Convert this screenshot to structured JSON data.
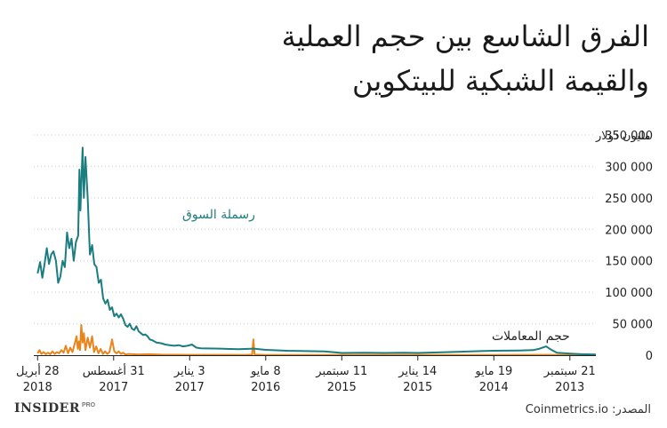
{
  "title_lines": [
    "الفرق الشاسع بين حجم العملية",
    "والقيمة الشبكية للبيتكوين"
  ],
  "footer": {
    "brand": "INSIDER",
    "brand_super": "PRO",
    "source_label": "المصدر:",
    "source_name": "Coinmetrics.io"
  },
  "colors": {
    "market_cap": "#1b7d80",
    "volume": "#e8851d",
    "axis": "#222222",
    "grid": "#cfcfcf",
    "text": "#222222"
  },
  "chart_data": {
    "type": "line",
    "title": "الفرق الشاسع بين حجم العملية والقيمة الشبكية للبيتكوين",
    "xlabel": "",
    "ylabel": "مليون دولار",
    "ylim": [
      0,
      350000
    ],
    "yticks": [
      0,
      50000,
      100000,
      150000,
      200000,
      250000,
      300000,
      350000
    ],
    "ytick_labels": [
      "0",
      "50 000",
      "100 000",
      "150 000",
      "200 000",
      "250 000",
      "300 000",
      "350 000"
    ],
    "y_unit_label": "مليون دولار",
    "x_reversed": true,
    "xrange": [
      "2018-05-10",
      "2013-07-01"
    ],
    "xticks": [
      {
        "date": "2018-04-28",
        "day": "28 أبريل",
        "year": "2018"
      },
      {
        "date": "2017-08-31",
        "day": "31 أغسطس",
        "year": "2017"
      },
      {
        "date": "2017-01-03",
        "day": "3 يناير",
        "year": "2017"
      },
      {
        "date": "2016-05-08",
        "day": "8 مايو",
        "year": "2016"
      },
      {
        "date": "2015-09-11",
        "day": "11 سبتمبر",
        "year": "2015"
      },
      {
        "date": "2015-01-14",
        "day": "14 يناير",
        "year": "2015"
      },
      {
        "date": "2014-05-19",
        "day": "19 مايو",
        "year": "2014"
      },
      {
        "date": "2013-09-21",
        "day": "21 سبتمبر",
        "year": "2013"
      }
    ],
    "grid": false,
    "annotations": [
      {
        "text": "رسملة السوق",
        "series": "رسملة السوق",
        "near": "2017-07-15"
      },
      {
        "text": "حجم المعاملات",
        "series": "حجم المعاملات",
        "near": "2014-06-01"
      }
    ],
    "series": [
      {
        "name": "رسملة السوق",
        "color": "#1b7d80",
        "points": [
          [
            "2018-04-28",
            130000
          ],
          [
            "2018-04-20",
            148000
          ],
          [
            "2018-04-13",
            123000
          ],
          [
            "2018-04-06",
            145000
          ],
          [
            "2018-03-30",
            170000
          ],
          [
            "2018-03-23",
            145000
          ],
          [
            "2018-03-16",
            160000
          ],
          [
            "2018-03-09",
            165000
          ],
          [
            "2018-03-01",
            150000
          ],
          [
            "2018-02-22",
            115000
          ],
          [
            "2018-02-15",
            125000
          ],
          [
            "2018-02-08",
            150000
          ],
          [
            "2018-02-01",
            140000
          ],
          [
            "2018-01-25",
            195000
          ],
          [
            "2018-01-18",
            170000
          ],
          [
            "2018-01-11",
            185000
          ],
          [
            "2018-01-04",
            150000
          ],
          [
            "2017-12-28",
            180000
          ],
          [
            "2017-12-21",
            190000
          ],
          [
            "2017-12-17",
            295000
          ],
          [
            "2017-12-14",
            230000
          ],
          [
            "2017-12-07",
            330000
          ],
          [
            "2017-12-03",
            250000
          ],
          [
            "2017-11-28",
            315000
          ],
          [
            "2017-11-21",
            250000
          ],
          [
            "2017-11-14",
            160000
          ],
          [
            "2017-11-07",
            175000
          ],
          [
            "2017-10-31",
            145000
          ],
          [
            "2017-10-24",
            140000
          ],
          [
            "2017-10-17",
            115000
          ],
          [
            "2017-10-10",
            120000
          ],
          [
            "2017-10-03",
            90000
          ],
          [
            "2017-09-26",
            82000
          ],
          [
            "2017-09-19",
            88000
          ],
          [
            "2017-09-12",
            72000
          ],
          [
            "2017-09-05",
            76000
          ],
          [
            "2017-08-29",
            62000
          ],
          [
            "2017-08-22",
            66000
          ],
          [
            "2017-08-15",
            60000
          ],
          [
            "2017-08-08",
            65000
          ],
          [
            "2017-08-01",
            58000
          ],
          [
            "2017-07-25",
            48000
          ],
          [
            "2017-07-18",
            45000
          ],
          [
            "2017-07-11",
            50000
          ],
          [
            "2017-07-04",
            42000
          ],
          [
            "2017-06-27",
            40000
          ],
          [
            "2017-06-20",
            46000
          ],
          [
            "2017-06-13",
            38000
          ],
          [
            "2017-06-06",
            35000
          ],
          [
            "2017-05-30",
            32000
          ],
          [
            "2017-05-23",
            33000
          ],
          [
            "2017-05-16",
            30000
          ],
          [
            "2017-05-09",
            25000
          ],
          [
            "2017-05-02",
            24000
          ],
          [
            "2017-04-18",
            20000
          ],
          [
            "2017-04-04",
            19000
          ],
          [
            "2017-03-21",
            17000
          ],
          [
            "2017-03-07",
            16000
          ],
          [
            "2017-02-21",
            15000
          ],
          [
            "2017-02-07",
            16000
          ],
          [
            "2017-01-24",
            14000
          ],
          [
            "2017-01-10",
            15000
          ],
          [
            "2016-12-27",
            17000
          ],
          [
            "2016-12-13",
            12000
          ],
          [
            "2016-11-29",
            11000
          ],
          [
            "2016-10-01",
            10500
          ],
          [
            "2016-08-01",
            9500
          ],
          [
            "2016-06-15",
            10500
          ],
          [
            "2016-05-08",
            8500
          ],
          [
            "2016-03-01",
            7000
          ],
          [
            "2016-01-01",
            6500
          ],
          [
            "2015-11-05",
            6000
          ],
          [
            "2015-09-11",
            3500
          ],
          [
            "2015-07-01",
            4000
          ],
          [
            "2015-05-01",
            3500
          ],
          [
            "2015-03-01",
            4000
          ],
          [
            "2015-01-14",
            3500
          ],
          [
            "2014-11-01",
            4500
          ],
          [
            "2014-09-01",
            5500
          ],
          [
            "2014-07-01",
            6500
          ],
          [
            "2014-05-19",
            7000
          ],
          [
            "2014-03-01",
            7500
          ],
          [
            "2014-01-15",
            8000
          ],
          [
            "2013-12-28",
            10000
          ],
          [
            "2013-12-05",
            14000
          ],
          [
            "2013-11-20",
            9000
          ],
          [
            "2013-11-01",
            4000
          ],
          [
            "2013-09-21",
            2500
          ],
          [
            "2013-08-15",
            1500
          ],
          [
            "2013-07-01",
            1000
          ]
        ]
      },
      {
        "name": "حجم المعاملات",
        "color": "#e8851d",
        "points": [
          [
            "2018-04-28",
            3000
          ],
          [
            "2018-04-22",
            8000
          ],
          [
            "2018-04-16",
            2000
          ],
          [
            "2018-04-09",
            5000
          ],
          [
            "2018-04-02",
            1500
          ],
          [
            "2018-03-26",
            4000
          ],
          [
            "2018-03-19",
            1500
          ],
          [
            "2018-03-12",
            6000
          ],
          [
            "2018-03-05",
            2000
          ],
          [
            "2018-02-26",
            5000
          ],
          [
            "2018-02-19",
            3000
          ],
          [
            "2018-02-12",
            8000
          ],
          [
            "2018-02-05",
            4000
          ],
          [
            "2018-01-29",
            15000
          ],
          [
            "2018-01-22",
            3000
          ],
          [
            "2018-01-15",
            12000
          ],
          [
            "2018-01-08",
            5000
          ],
          [
            "2018-01-01",
            18000
          ],
          [
            "2017-12-26",
            30000
          ],
          [
            "2017-12-22",
            10000
          ],
          [
            "2017-12-18",
            22000
          ],
          [
            "2017-12-15",
            8000
          ],
          [
            "2017-12-11",
            48000
          ],
          [
            "2017-12-07",
            20000
          ],
          [
            "2017-12-03",
            35000
          ],
          [
            "2017-11-28",
            8000
          ],
          [
            "2017-11-21",
            28000
          ],
          [
            "2017-11-14",
            12000
          ],
          [
            "2017-11-07",
            30000
          ],
          [
            "2017-11-01",
            5000
          ],
          [
            "2017-10-25",
            14000
          ],
          [
            "2017-10-18",
            3000
          ],
          [
            "2017-10-11",
            10000
          ],
          [
            "2017-10-04",
            2000
          ],
          [
            "2017-09-27",
            6000
          ],
          [
            "2017-09-20",
            2000
          ],
          [
            "2017-09-13",
            5000
          ],
          [
            "2017-09-05",
            25000
          ],
          [
            "2017-08-29",
            6000
          ],
          [
            "2017-08-22",
            3000
          ],
          [
            "2017-08-15",
            6000
          ],
          [
            "2017-08-08",
            2000
          ],
          [
            "2017-08-01",
            4000
          ],
          [
            "2017-07-25",
            1000
          ],
          [
            "2017-07-15",
            2000
          ],
          [
            "2017-06-15",
            1000
          ],
          [
            "2017-05-15",
            1500
          ],
          [
            "2017-04-01",
            800
          ],
          [
            "2017-01-03",
            600
          ],
          [
            "2016-10-01",
            500
          ],
          [
            "2016-07-15",
            400
          ],
          [
            "2016-06-20",
            800
          ],
          [
            "2016-06-16",
            25000
          ],
          [
            "2016-06-12",
            800
          ],
          [
            "2016-05-08",
            400
          ],
          [
            "2016-01-01",
            300
          ],
          [
            "2015-09-11",
            300
          ],
          [
            "2015-01-14",
            300
          ],
          [
            "2014-05-19",
            300
          ],
          [
            "2013-12-05",
            500
          ],
          [
            "2013-09-21",
            200
          ],
          [
            "2013-07-01",
            100
          ]
        ]
      }
    ]
  }
}
